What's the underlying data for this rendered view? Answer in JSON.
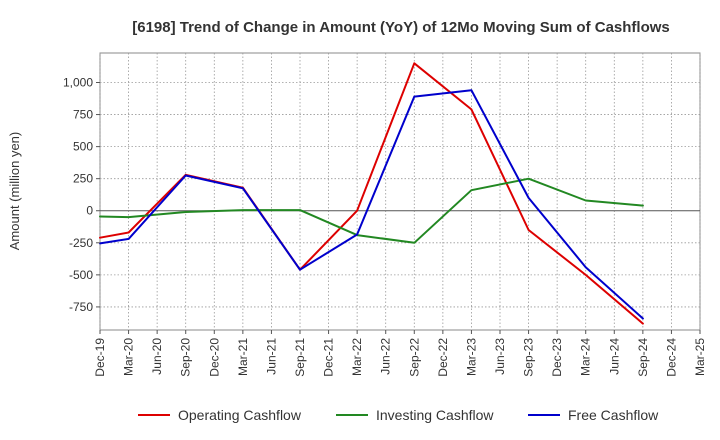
{
  "chart_data": {
    "type": "line",
    "title": "[6198]  Trend of Change in Amount (YoY) of 12Mo Moving Sum of Cashflows",
    "ylabel": "Amount (million yen)",
    "xlabel": "",
    "ylim": [
      -930,
      1230
    ],
    "yticks": [
      1000,
      750,
      500,
      250,
      0,
      -250,
      -500,
      -750
    ],
    "ytick_labels": [
      "1,000",
      "750",
      "500",
      "250",
      "0",
      "-250",
      "-500",
      "-750"
    ],
    "categories": [
      "Dec-19",
      "Mar-20",
      "Jun-20",
      "Sep-20",
      "Dec-20",
      "Mar-21",
      "Jun-21",
      "Sep-21",
      "Dec-21",
      "Mar-22",
      "Jun-22",
      "Sep-22",
      "Dec-22",
      "Mar-23",
      "Jun-23",
      "Sep-23",
      "Dec-23",
      "Mar-24",
      "Jun-24",
      "Sep-24",
      "Dec-24",
      "Mar-25"
    ],
    "grid": true,
    "legend_position": "bottom",
    "series": [
      {
        "name": "Operating Cashflow",
        "color": "#dd0000",
        "points": [
          {
            "x": "Dec-19",
            "y": -210
          },
          {
            "x": "Mar-20",
            "y": -170
          },
          {
            "x": "Sep-20",
            "y": 280
          },
          {
            "x": "Mar-21",
            "y": 180
          },
          {
            "x": "Sep-21",
            "y": -460
          },
          {
            "x": "Mar-22",
            "y": 0
          },
          {
            "x": "Sep-22",
            "y": 1150
          },
          {
            "x": "Mar-23",
            "y": 790
          },
          {
            "x": "Sep-23",
            "y": -150
          },
          {
            "x": "Mar-24",
            "y": -500
          },
          {
            "x": "Sep-24",
            "y": -880
          }
        ]
      },
      {
        "name": "Investing Cashflow",
        "color": "#228822",
        "points": [
          {
            "x": "Dec-19",
            "y": -45
          },
          {
            "x": "Mar-20",
            "y": -50
          },
          {
            "x": "Sep-20",
            "y": -10
          },
          {
            "x": "Mar-21",
            "y": 5
          },
          {
            "x": "Sep-21",
            "y": 5
          },
          {
            "x": "Mar-22",
            "y": -190
          },
          {
            "x": "Sep-22",
            "y": -250
          },
          {
            "x": "Mar-23",
            "y": 160
          },
          {
            "x": "Sep-23",
            "y": 250
          },
          {
            "x": "Mar-24",
            "y": 80
          },
          {
            "x": "Sep-24",
            "y": 40
          }
        ]
      },
      {
        "name": "Free Cashflow",
        "color": "#0000cc",
        "points": [
          {
            "x": "Dec-19",
            "y": -255
          },
          {
            "x": "Mar-20",
            "y": -220
          },
          {
            "x": "Sep-20",
            "y": 275
          },
          {
            "x": "Mar-21",
            "y": 175
          },
          {
            "x": "Sep-21",
            "y": -460
          },
          {
            "x": "Mar-22",
            "y": -185
          },
          {
            "x": "Sep-22",
            "y": 890
          },
          {
            "x": "Mar-23",
            "y": 940
          },
          {
            "x": "Sep-23",
            "y": 100
          },
          {
            "x": "Mar-24",
            "y": -440
          },
          {
            "x": "Sep-24",
            "y": -840
          }
        ]
      }
    ]
  }
}
